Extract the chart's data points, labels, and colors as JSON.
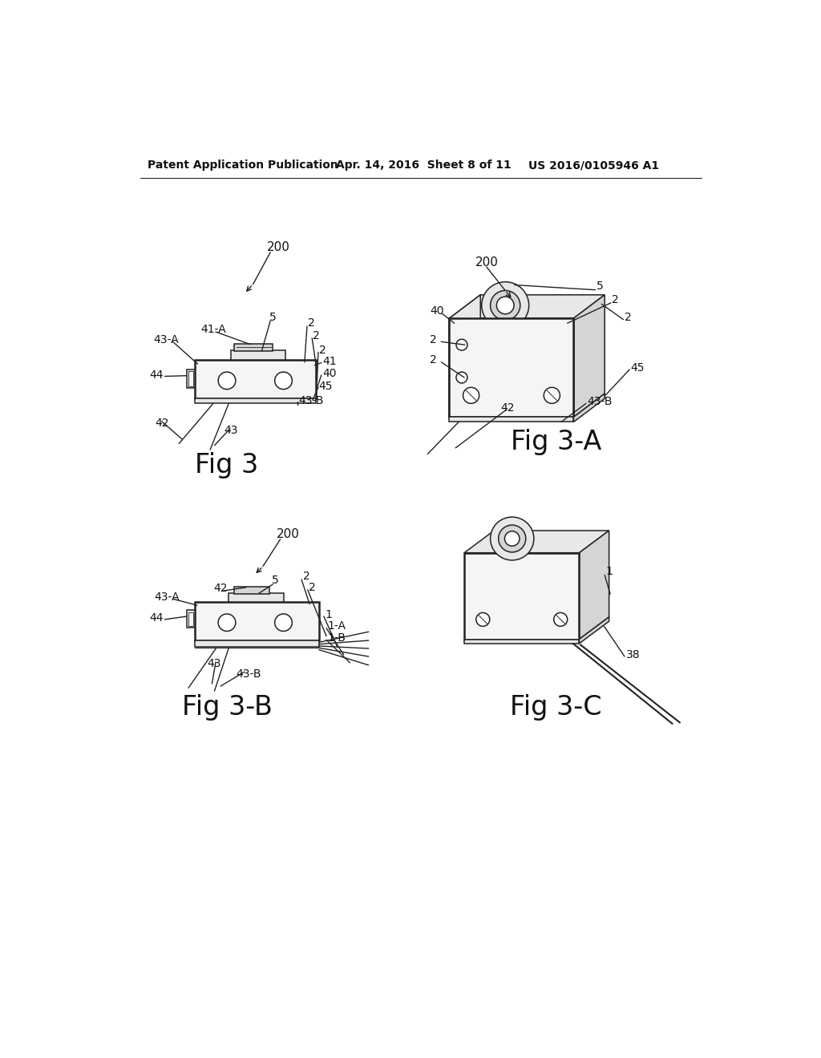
{
  "bg_color": "#ffffff",
  "header_left": "Patent Application Publication",
  "header_mid": "Apr. 14, 2016  Sheet 8 of 11",
  "header_right": "US 2016/0105946 A1",
  "fig3_title": "Fig 3",
  "fig3a_title": "Fig 3-A",
  "fig3b_title": "Fig 3-B",
  "fig3c_title": "Fig 3-C",
  "line_color": "#222222",
  "face_light": "#f5f5f5",
  "face_mid": "#e8e8e8",
  "face_dark": "#d5d5d5"
}
